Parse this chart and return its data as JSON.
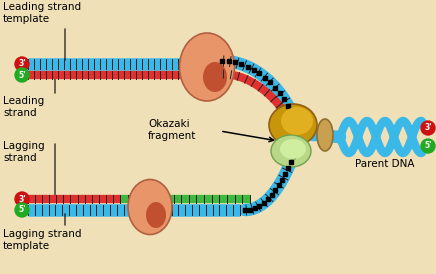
{
  "bg_color": "#f0e0b8",
  "labels": {
    "leading_strand_template": "Leading strand\ntemplate",
    "leading_strand": "Leading\nstrand",
    "lagging_strand": "Lagging\nstrand",
    "lagging_strand_template": "Lagging strand\ntemplate",
    "okazaki": "Okazaki\nfragment",
    "parent_dna": "Parent DNA"
  },
  "blue": "#3ab8e8",
  "red": "#e03030",
  "green": "#40b840",
  "salmon": "#e8956a",
  "salmon_dark": "#c05030",
  "gold": "#c8960a",
  "gold_light": "#e0b830",
  "green_light": "#a8d878",
  "tan": "#c8a050"
}
